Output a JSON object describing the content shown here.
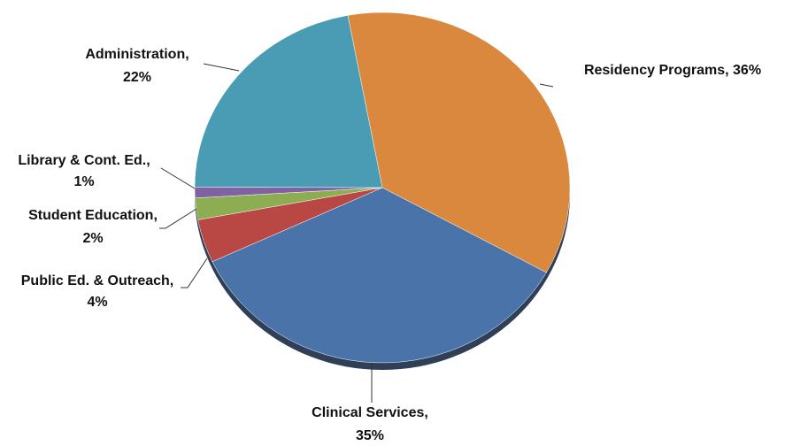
{
  "chart_data": {
    "type": "pie",
    "labels": [
      [
        "Residency Programs, 36%"
      ],
      [
        "Clinical Services,",
        "35%"
      ],
      [
        "Public Ed. & Outreach,",
        "4%"
      ],
      [
        "Student Education,",
        "2%"
      ],
      [
        "Library & Cont. Ed.,",
        "1%"
      ],
      [
        "Administration,",
        "22%"
      ]
    ],
    "values": [
      36,
      35,
      4,
      2,
      1,
      22
    ],
    "colors": [
      "#d9883e",
      "#4a73aa",
      "#b94743",
      "#8cad52",
      "#7f62a1",
      "#4a9bb4"
    ]
  }
}
